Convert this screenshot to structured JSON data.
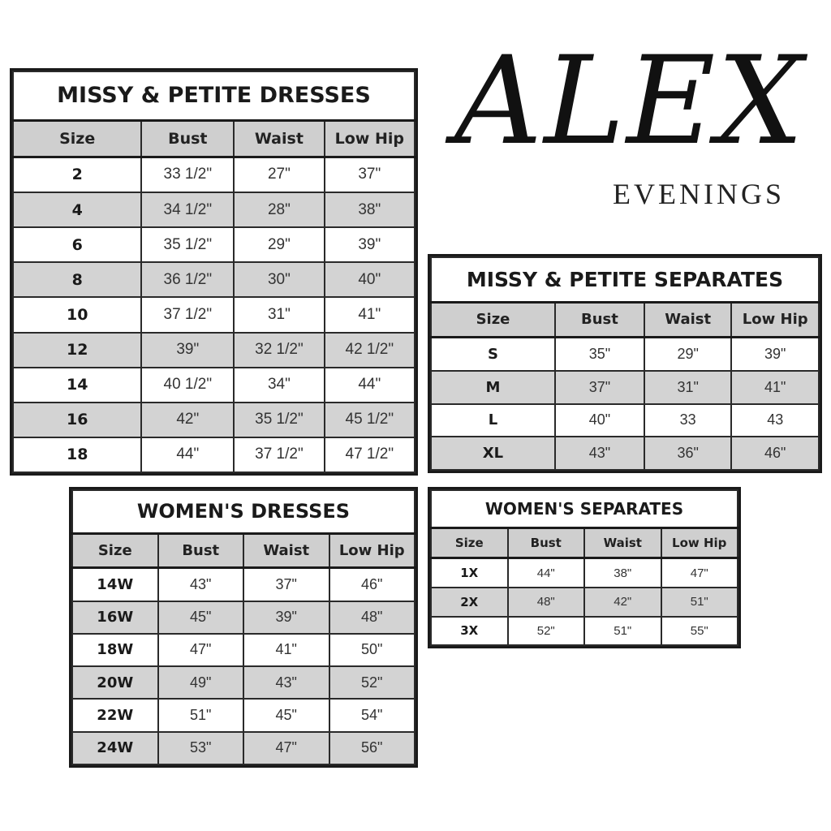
{
  "logo": {
    "main": "ALEX",
    "sub": "EVENINGS"
  },
  "headers": [
    "Size",
    "Bust",
    "Waist",
    "Low Hip"
  ],
  "tables": [
    {
      "id": "t1",
      "title": "MISSY & PETITE DRESSES",
      "rows": [
        [
          "2",
          "33 1/2\"",
          "27\"",
          "37\""
        ],
        [
          "4",
          "34 1/2\"",
          "28\"",
          "38\""
        ],
        [
          "6",
          "35 1/2\"",
          "29\"",
          "39\""
        ],
        [
          "8",
          "36 1/2\"",
          "30\"",
          "40\""
        ],
        [
          "10",
          "37 1/2\"",
          "31\"",
          "41\""
        ],
        [
          "12",
          "39\"",
          "32 1/2\"",
          "42 1/2\""
        ],
        [
          "14",
          "40 1/2\"",
          "34\"",
          "44\""
        ],
        [
          "16",
          "42\"",
          "35 1/2\"",
          "45 1/2\""
        ],
        [
          "18",
          "44\"",
          "37 1/2\"",
          "47 1/2\""
        ]
      ]
    },
    {
      "id": "t2",
      "title": "MISSY & PETITE SEPARATES",
      "rows": [
        [
          "S",
          "35\"",
          "29\"",
          "39\""
        ],
        [
          "M",
          "37\"",
          "31\"",
          "41\""
        ],
        [
          "L",
          "40\"",
          "33",
          "43"
        ],
        [
          "XL",
          "43\"",
          "36\"",
          "46\""
        ]
      ]
    },
    {
      "id": "t3",
      "title": "WOMEN'S DRESSES",
      "rows": [
        [
          "14W",
          "43\"",
          "37\"",
          "46\""
        ],
        [
          "16W",
          "45\"",
          "39\"",
          "48\""
        ],
        [
          "18W",
          "47\"",
          "41\"",
          "50\""
        ],
        [
          "20W",
          "49\"",
          "43\"",
          "52\""
        ],
        [
          "22W",
          "51\"",
          "45\"",
          "54\""
        ],
        [
          "24W",
          "53\"",
          "47\"",
          "56\""
        ]
      ]
    },
    {
      "id": "t4",
      "title": "WOMEN'S SEPARATES",
      "rows": [
        [
          "1X",
          "44\"",
          "38\"",
          "47\""
        ],
        [
          "2X",
          "48\"",
          "42\"",
          "51\""
        ],
        [
          "3X",
          "52\"",
          "51\"",
          "55\""
        ]
      ]
    }
  ]
}
